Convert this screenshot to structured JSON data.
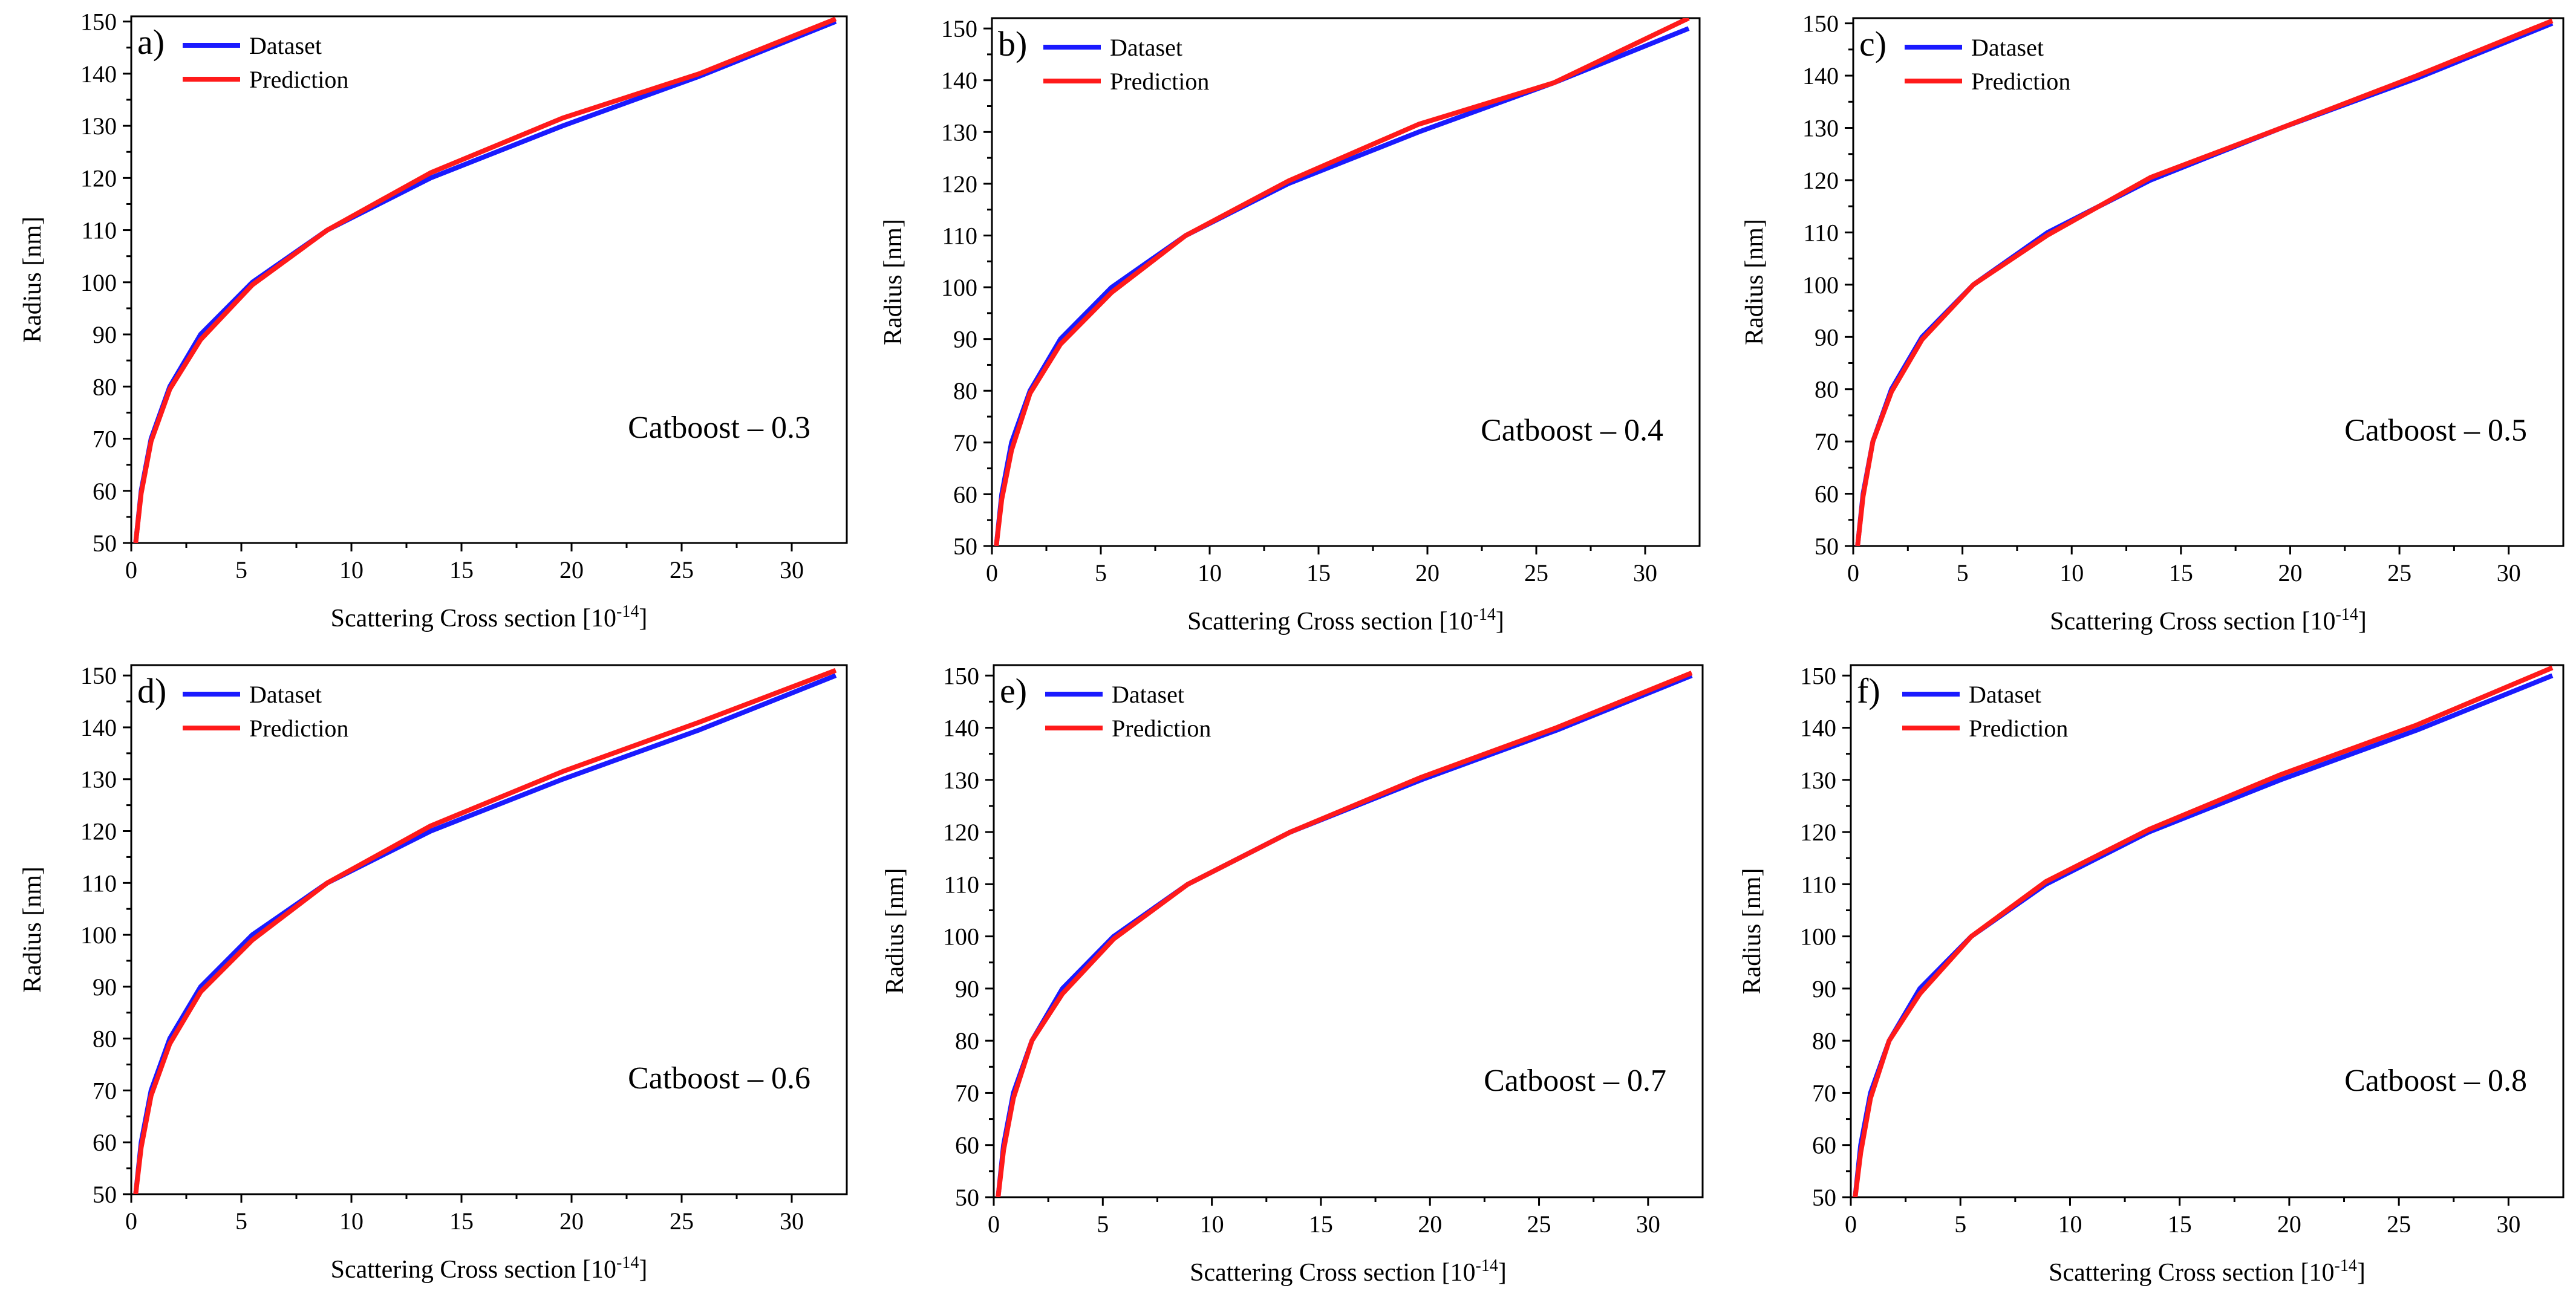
{
  "figure": {
    "background": "#ffffff"
  },
  "colors": {
    "dataset": "#1a1aff",
    "prediction": "#ff1a1a",
    "axis": "#000000"
  },
  "chart_data": [
    {
      "type": "line",
      "panel": "a)",
      "title": "Catboost – 0.3",
      "xlabel": "Scattering Cross section [10",
      "xlabel_exp": "-14",
      "xlabel_close": "]",
      "ylabel": "Radius [nm]",
      "xlim": [
        0,
        32.5
      ],
      "ylim": [
        50,
        151
      ],
      "xticks": [
        0,
        5,
        10,
        15,
        20,
        25,
        30
      ],
      "yticks": [
        50,
        60,
        70,
        80,
        90,
        100,
        110,
        120,
        130,
        140,
        150
      ],
      "legend_position": "top-left",
      "series": [
        {
          "name": "Dataset",
          "color": "#1a1aff",
          "x": [
            0.2,
            0.45,
            0.9,
            1.75,
            3.15,
            5.5,
            8.9,
            13.6,
            19.6,
            25.8,
            32.0
          ],
          "y": [
            50,
            60,
            70,
            80,
            90,
            100,
            110,
            120,
            130,
            139.5,
            150
          ]
        },
        {
          "name": "Prediction",
          "color": "#ff1a1a",
          "x": [
            0.2,
            0.45,
            0.9,
            1.75,
            3.15,
            5.5,
            8.9,
            13.6,
            19.6,
            25.8,
            32.0
          ],
          "y": [
            50,
            59.5,
            69.5,
            79.5,
            89,
            99.5,
            110,
            121,
            131.5,
            140,
            150.5
          ]
        }
      ]
    },
    {
      "type": "line",
      "panel": "b)",
      "title": "Catboost – 0.4",
      "xlabel": "Scattering Cross section [10",
      "xlabel_exp": "-14",
      "xlabel_close": "]",
      "ylabel": "Radius [nm]",
      "xlim": [
        0,
        32.5
      ],
      "ylim": [
        50,
        152
      ],
      "xticks": [
        0,
        5,
        10,
        15,
        20,
        25,
        30
      ],
      "yticks": [
        50,
        60,
        70,
        80,
        90,
        100,
        110,
        120,
        130,
        140,
        150
      ],
      "legend_position": "top-left",
      "series": [
        {
          "name": "Dataset",
          "color": "#1a1aff",
          "x": [
            0.2,
            0.45,
            0.9,
            1.75,
            3.15,
            5.5,
            8.9,
            13.6,
            19.6,
            25.8,
            32.0
          ],
          "y": [
            50,
            60,
            70,
            80,
            90,
            100,
            110,
            120,
            130,
            139.5,
            150
          ]
        },
        {
          "name": "Prediction",
          "color": "#ff1a1a",
          "x": [
            0.2,
            0.45,
            0.9,
            1.75,
            3.15,
            5.5,
            8.9,
            13.6,
            19.6,
            25.8,
            32.0
          ],
          "y": [
            50,
            59,
            68.5,
            79.5,
            89,
            99,
            110,
            120.5,
            131.5,
            139.5,
            152
          ]
        }
      ]
    },
    {
      "type": "line",
      "panel": "c)",
      "title": "Catboost – 0.5",
      "xlabel": "Scattering Cross section [10",
      "xlabel_exp": "-14",
      "xlabel_close": "]",
      "ylabel": "Radius [nm]",
      "xlim": [
        0,
        32.5
      ],
      "ylim": [
        50,
        151
      ],
      "xticks": [
        0,
        5,
        10,
        15,
        20,
        25,
        30
      ],
      "yticks": [
        50,
        60,
        70,
        80,
        90,
        100,
        110,
        120,
        130,
        140,
        150
      ],
      "legend_position": "top-left",
      "series": [
        {
          "name": "Dataset",
          "color": "#1a1aff",
          "x": [
            0.2,
            0.45,
            0.9,
            1.75,
            3.15,
            5.5,
            8.9,
            13.6,
            19.6,
            25.8,
            32.0
          ],
          "y": [
            50,
            60,
            70,
            80,
            90,
            100,
            110,
            120,
            130,
            139.5,
            150
          ]
        },
        {
          "name": "Prediction",
          "color": "#ff1a1a",
          "x": [
            0.2,
            0.45,
            0.9,
            1.75,
            3.15,
            5.5,
            8.9,
            13.6,
            19.6,
            25.8,
            32.0
          ],
          "y": [
            50,
            59.5,
            70,
            79.5,
            89.5,
            100,
            109.5,
            120.5,
            130,
            140,
            150.5
          ]
        }
      ]
    },
    {
      "type": "line",
      "panel": "d)",
      "title": "Catboost – 0.6",
      "xlabel": "Scattering Cross section [10",
      "xlabel_exp": "-14",
      "xlabel_close": "]",
      "ylabel": "Radius [nm]",
      "xlim": [
        0,
        32.5
      ],
      "ylim": [
        50,
        152
      ],
      "xticks": [
        0,
        5,
        10,
        15,
        20,
        25,
        30
      ],
      "yticks": [
        50,
        60,
        70,
        80,
        90,
        100,
        110,
        120,
        130,
        140,
        150
      ],
      "legend_position": "top-left",
      "series": [
        {
          "name": "Dataset",
          "color": "#1a1aff",
          "x": [
            0.2,
            0.45,
            0.9,
            1.75,
            3.15,
            5.5,
            8.9,
            13.6,
            19.6,
            25.8,
            32.0
          ],
          "y": [
            50,
            60,
            70,
            80,
            90,
            100,
            110,
            120,
            130,
            139.5,
            150
          ]
        },
        {
          "name": "Prediction",
          "color": "#ff1a1a",
          "x": [
            0.2,
            0.45,
            0.9,
            1.75,
            3.15,
            5.5,
            8.9,
            13.6,
            19.6,
            25.8,
            32.0
          ],
          "y": [
            50,
            59,
            69,
            79,
            89,
            99,
            110,
            121,
            131.5,
            141,
            151
          ]
        }
      ]
    },
    {
      "type": "line",
      "panel": "e)",
      "title": "Catboost – 0.7",
      "xlabel": "Scattering Cross section [10",
      "xlabel_exp": "-14",
      "xlabel_close": "]",
      "ylabel": "Radius [nm]",
      "xlim": [
        0,
        32.5
      ],
      "ylim": [
        50,
        152
      ],
      "xticks": [
        0,
        5,
        10,
        15,
        20,
        25,
        30
      ],
      "yticks": [
        50,
        60,
        70,
        80,
        90,
        100,
        110,
        120,
        130,
        140,
        150
      ],
      "legend_position": "top-left",
      "series": [
        {
          "name": "Dataset",
          "color": "#1a1aff",
          "x": [
            0.2,
            0.45,
            0.9,
            1.75,
            3.15,
            5.5,
            8.9,
            13.6,
            19.6,
            25.8,
            32.0
          ],
          "y": [
            50,
            60,
            70,
            80,
            90,
            100,
            110,
            120,
            130,
            139.5,
            150
          ]
        },
        {
          "name": "Prediction",
          "color": "#ff1a1a",
          "x": [
            0.2,
            0.45,
            0.9,
            1.75,
            3.15,
            5.5,
            8.9,
            13.6,
            19.6,
            25.8,
            32.0
          ],
          "y": [
            50,
            59,
            69,
            80,
            89,
            99.5,
            110,
            120,
            130.5,
            140,
            150.5
          ]
        }
      ]
    },
    {
      "type": "line",
      "panel": "f)",
      "title": "Catboost – 0.8",
      "xlabel": "Scattering Cross section [10",
      "xlabel_exp": "-14",
      "xlabel_close": "]",
      "ylabel": "Radius [nm]",
      "xlim": [
        0,
        32.5
      ],
      "ylim": [
        50,
        152
      ],
      "xticks": [
        0,
        5,
        10,
        15,
        20,
        25,
        30
      ],
      "yticks": [
        50,
        60,
        70,
        80,
        90,
        100,
        110,
        120,
        130,
        140,
        150
      ],
      "legend_position": "top-left",
      "series": [
        {
          "name": "Dataset",
          "color": "#1a1aff",
          "x": [
            0.2,
            0.45,
            0.9,
            1.75,
            3.15,
            5.5,
            8.9,
            13.6,
            19.6,
            25.8,
            32.0
          ],
          "y": [
            50,
            60,
            70,
            80,
            90,
            100,
            110,
            120,
            130,
            139.5,
            150
          ]
        },
        {
          "name": "Prediction",
          "color": "#ff1a1a",
          "x": [
            0.2,
            0.45,
            0.9,
            1.75,
            3.15,
            5.5,
            8.9,
            13.6,
            19.6,
            25.8,
            32.0
          ],
          "y": [
            50,
            58.5,
            69,
            80,
            89,
            100,
            110.5,
            120.5,
            131,
            140.5,
            151.5
          ]
        }
      ]
    }
  ]
}
